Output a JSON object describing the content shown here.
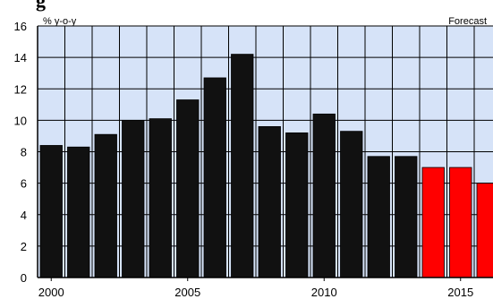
{
  "header": {
    "title_fragment": "g"
  },
  "chart_data": {
    "type": "bar",
    "unit_label": "% y-o-y",
    "forecast_label": "Forecast",
    "x": [
      2000,
      2001,
      2002,
      2003,
      2004,
      2005,
      2006,
      2007,
      2008,
      2009,
      2010,
      2011,
      2012,
      2013,
      2014,
      2015,
      2016
    ],
    "values": [
      8.4,
      8.3,
      9.1,
      10.0,
      10.1,
      11.3,
      12.7,
      14.2,
      9.6,
      9.2,
      10.4,
      9.3,
      7.7,
      7.7,
      7.0,
      7.0,
      6.0
    ],
    "forecast": [
      false,
      false,
      false,
      false,
      false,
      false,
      false,
      false,
      false,
      false,
      false,
      false,
      false,
      false,
      true,
      true,
      true
    ],
    "ylim": [
      0,
      16
    ],
    "yticks": [
      0,
      2,
      4,
      6,
      8,
      10,
      12,
      14,
      16
    ],
    "xtick_labels": [
      "2000",
      "2005",
      "2010",
      "2015"
    ],
    "xtick_years": [
      2000,
      2005,
      2010,
      2015
    ],
    "grid": true,
    "colors": {
      "actual": "#111111",
      "forecast": "#ff0000",
      "plot_bg": "#d6e3f8",
      "grid": "#000000"
    }
  }
}
